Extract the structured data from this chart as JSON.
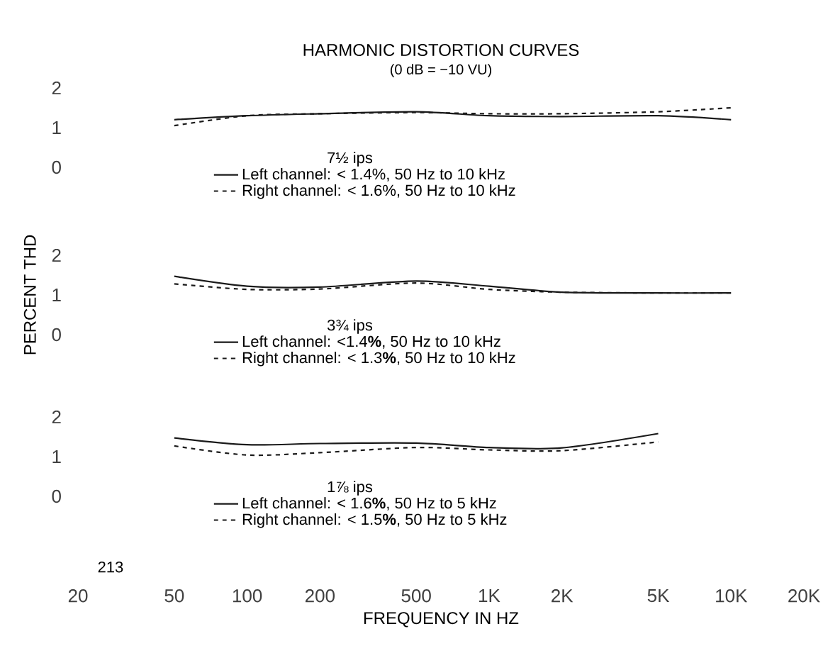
{
  "chart_data": [
    {
      "type": "line",
      "title": "HARMONIC DISTORTION CURVES",
      "subtitle": "(0 dB = −10 VU)",
      "log": "x",
      "xlim": [
        20,
        20000
      ],
      "ylim": [
        0,
        2
      ],
      "yticks": [
        0,
        1,
        2
      ],
      "tick_labels": "y",
      "legend": "bottom",
      "legend_title": "7½ ips",
      "marker": "none",
      "x": [
        50,
        100,
        200,
        500,
        1000,
        2000,
        5000,
        10000
      ],
      "series": [
        {
          "name": "Left channel: < 1.4%, 50 Hz to 10 kHz",
          "color": "#1a1a1a",
          "line_style": "solid",
          "values": [
            1.2,
            1.3,
            1.35,
            1.4,
            1.3,
            1.28,
            1.3,
            1.2
          ]
        },
        {
          "name": "Right channel: < 1.6%, 50 Hz to 10 kHz",
          "color": "#1a1a1a",
          "line_style": "dashed",
          "values": [
            1.05,
            1.3,
            1.35,
            1.38,
            1.35,
            1.35,
            1.4,
            1.5
          ]
        }
      ]
    },
    {
      "type": "line",
      "ylabel": "PERCENT THD",
      "log": "x",
      "xlim": [
        20,
        20000
      ],
      "ylim": [
        0,
        2
      ],
      "yticks": [
        0,
        1,
        2
      ],
      "tick_labels": "y",
      "legend": "bottom",
      "legend_title": "3¾ ips",
      "marker": "none",
      "x": [
        50,
        100,
        200,
        500,
        1000,
        2000,
        5000,
        10000
      ],
      "series": [
        {
          "name": "Left channel: <1.4**%**, 50 Hz to 10 kHz",
          "color": "#1a1a1a",
          "line_style": "solid",
          "values": [
            1.47,
            1.22,
            1.2,
            1.35,
            1.22,
            1.07,
            1.05,
            1.05
          ]
        },
        {
          "name": "Right channel: < 1.3**%**, 50 Hz to 10 kHz",
          "color": "#1a1a1a",
          "line_style": "dashed",
          "values": [
            1.28,
            1.14,
            1.15,
            1.3,
            1.14,
            1.07,
            1.05,
            1.05
          ]
        }
      ]
    },
    {
      "type": "line",
      "xlabel": "FREQUENCY IN HZ",
      "log": "x",
      "xlim": [
        20,
        20000
      ],
      "xticks": [
        20,
        50,
        100,
        200,
        500,
        {
          "value": 1000,
          "label": "1K"
        },
        {
          "value": 2000,
          "label": "2K"
        },
        {
          "value": 5000,
          "label": "5K"
        },
        {
          "value": 10000,
          "label": "10K"
        },
        {
          "value": 20000,
          "label": "20K"
        }
      ],
      "ylim": [
        0,
        2
      ],
      "yticks": [
        0,
        1,
        2
      ],
      "legend": "bottom",
      "legend_title": "1⅞ ips",
      "marker": "none",
      "annotations": [
        "213"
      ],
      "x": [
        50,
        100,
        200,
        500,
        1000,
        2000,
        5000
      ],
      "series": [
        {
          "name": "Left channel: < 1.6**%**, 50 Hz to 5 kHz",
          "color": "#1a1a1a",
          "line_style": "solid",
          "values": [
            1.47,
            1.3,
            1.33,
            1.34,
            1.23,
            1.22,
            1.58
          ]
        },
        {
          "name": "Right channel: < 1.5**%**, 50 Hz to 5 kHz",
          "color": "#1a1a1a",
          "line_style": "dashed",
          "values": [
            1.27,
            1.04,
            1.1,
            1.23,
            1.17,
            1.15,
            1.37
          ]
        }
      ]
    }
  ]
}
